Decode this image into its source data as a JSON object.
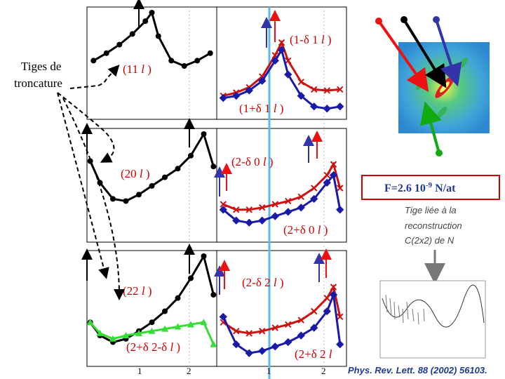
{
  "annotations": {
    "tiges_line1": "Tiges de",
    "tiges_line2": "troncature",
    "f_value": "F=2.6 10",
    "f_exp": "-9",
    "f_unit": " N/at",
    "tige_note": [
      "Tige liée à la",
      "reconstruction",
      "C(2x2) de N"
    ],
    "reference": "Phys. Rev. Lett. 88 (2002) 56103."
  },
  "panels": [
    {
      "id": "11l",
      "label": "(11 l )",
      "label_parts": [
        "(11 ",
        "l",
        " )"
      ]
    },
    {
      "id": "1md1l",
      "label": "(1-δ 1 l )",
      "label_parts": [
        "(1-δ 1 ",
        "l",
        " )"
      ]
    },
    {
      "id": "1pd1l",
      "label": "(1+δ 1 l )",
      "label_parts": [
        "(1+δ 1 ",
        "l",
        " )"
      ]
    },
    {
      "id": "20l",
      "label": "(20 l )",
      "label_parts": [
        "(20 ",
        "l",
        " )"
      ]
    },
    {
      "id": "2md0l",
      "label": "(2-δ 0 l )",
      "label_parts": [
        "(2-δ 0 ",
        "l",
        " )"
      ]
    },
    {
      "id": "2pd0l",
      "label": "(2+δ 0 l )",
      "label_parts": [
        "(2+δ 0 ",
        "l",
        " )"
      ]
    },
    {
      "id": "22l",
      "label": "(22 l )",
      "label_parts": [
        "(22 ",
        "l",
        " )"
      ]
    },
    {
      "id": "2md2l",
      "label": "(2-δ 2 l )",
      "label_parts": [
        "(2-δ 2 ",
        "l",
        " )"
      ]
    },
    {
      "id": "2pd2-dl",
      "label": "(2+δ 2-δ l )",
      "label_parts": [
        "(2+δ 2-δ ",
        "l",
        " )"
      ]
    },
    {
      "id": "2pd2l",
      "label": "(2+δ 2 l",
      "label_parts": [
        "(2+δ 2 ",
        "l",
        ""
      ]
    }
  ],
  "axes": {
    "x_ticks_left": [
      "1",
      "2"
    ],
    "x_ticks_right": [
      "1",
      "2"
    ]
  },
  "chart_data": {
    "type": "line",
    "title": "",
    "xlabel": "",
    "ylabel": "",
    "xlim": [
      0.0,
      2.0
    ],
    "series_colors": {
      "black": "#000000",
      "red": "#cc1111",
      "blue": "#1a1aa8",
      "green": "#33dd33",
      "cyan_line": "#60b8e8"
    },
    "panels": [
      {
        "name": "(11 l )",
        "series": [
          {
            "color": "black",
            "x": [
              0.1,
              0.3,
              0.5,
              0.7,
              0.9,
              1.0,
              1.1,
              1.3,
              1.5,
              1.7,
              1.9
            ],
            "y": [
              0.55,
              0.62,
              0.7,
              0.8,
              0.92,
              1.0,
              0.78,
              0.55,
              0.5,
              0.55,
              0.62
            ]
          }
        ]
      },
      {
        "name": "(1-δ 1 l )",
        "series": [
          {
            "color": "red",
            "x": [
              0.1,
              0.3,
              0.5,
              0.7,
              0.9,
              1.0,
              1.1,
              1.3,
              1.5,
              1.7,
              1.9
            ],
            "y": [
              0.22,
              0.25,
              0.3,
              0.4,
              0.6,
              0.72,
              0.55,
              0.35,
              0.28,
              0.27,
              0.28
            ]
          },
          {
            "color": "blue",
            "x": [
              0.1,
              0.3,
              0.5,
              0.7,
              0.9,
              1.0,
              1.1,
              1.3,
              1.5,
              1.7,
              1.9
            ],
            "y": [
              0.2,
              0.22,
              0.27,
              0.36,
              0.55,
              0.65,
              0.42,
              0.22,
              0.12,
              0.1,
              0.12
            ]
          }
        ]
      },
      {
        "name": "(20 l )",
        "series": [
          {
            "color": "black",
            "x": [
              0.05,
              0.2,
              0.4,
              0.6,
              0.8,
              1.0,
              1.2,
              1.4,
              1.6,
              1.8,
              1.95
            ],
            "y": [
              0.75,
              0.55,
              0.4,
              0.38,
              0.44,
              0.52,
              0.6,
              0.68,
              0.8,
              1.0,
              0.7
            ]
          }
        ]
      },
      {
        "name": "(2-δ 0 l )",
        "series": [
          {
            "color": "red",
            "x": [
              0.1,
              0.3,
              0.5,
              0.7,
              0.9,
              1.1,
              1.3,
              1.5,
              1.7,
              1.8,
              1.9
            ],
            "y": [
              0.35,
              0.3,
              0.3,
              0.32,
              0.35,
              0.38,
              0.42,
              0.5,
              0.62,
              0.72,
              0.5
            ]
          },
          {
            "color": "blue",
            "x": [
              0.1,
              0.3,
              0.5,
              0.7,
              0.9,
              1.1,
              1.3,
              1.5,
              1.7,
              1.8,
              1.9
            ],
            "y": [
              0.3,
              0.2,
              0.18,
              0.2,
              0.24,
              0.28,
              0.32,
              0.4,
              0.55,
              0.62,
              0.3
            ]
          }
        ]
      },
      {
        "name": "(22 l )",
        "series": [
          {
            "color": "black",
            "x": [
              0.05,
              0.2,
              0.4,
              0.6,
              0.8,
              1.0,
              1.2,
              1.4,
              1.6,
              1.8,
              1.95
            ],
            "y": [
              0.4,
              0.28,
              0.22,
              0.25,
              0.32,
              0.4,
              0.5,
              0.62,
              0.8,
              1.0,
              0.65
            ]
          },
          {
            "color": "green",
            "x": [
              0.05,
              0.2,
              0.4,
              0.6,
              0.8,
              1.0,
              1.2,
              1.4,
              1.6,
              1.8,
              1.95
            ],
            "y": [
              0.4,
              0.3,
              0.25,
              0.28,
              0.3,
              0.32,
              0.34,
              0.36,
              0.38,
              0.4,
              0.2
            ]
          }
        ]
      },
      {
        "name": "(2-δ 2 l )",
        "series": [
          {
            "color": "red",
            "x": [
              0.1,
              0.3,
              0.5,
              0.7,
              0.9,
              1.1,
              1.3,
              1.5,
              1.7,
              1.8,
              1.9
            ],
            "y": [
              0.4,
              0.32,
              0.3,
              0.32,
              0.35,
              0.38,
              0.42,
              0.5,
              0.62,
              0.72,
              0.45
            ]
          },
          {
            "color": "blue",
            "x": [
              0.1,
              0.3,
              0.5,
              0.7,
              0.9,
              1.1,
              1.3,
              1.5,
              1.7,
              1.8,
              1.9
            ],
            "y": [
              0.45,
              0.2,
              0.12,
              0.14,
              0.18,
              0.22,
              0.28,
              0.35,
              0.5,
              0.65,
              0.2
            ]
          }
        ]
      }
    ]
  }
}
